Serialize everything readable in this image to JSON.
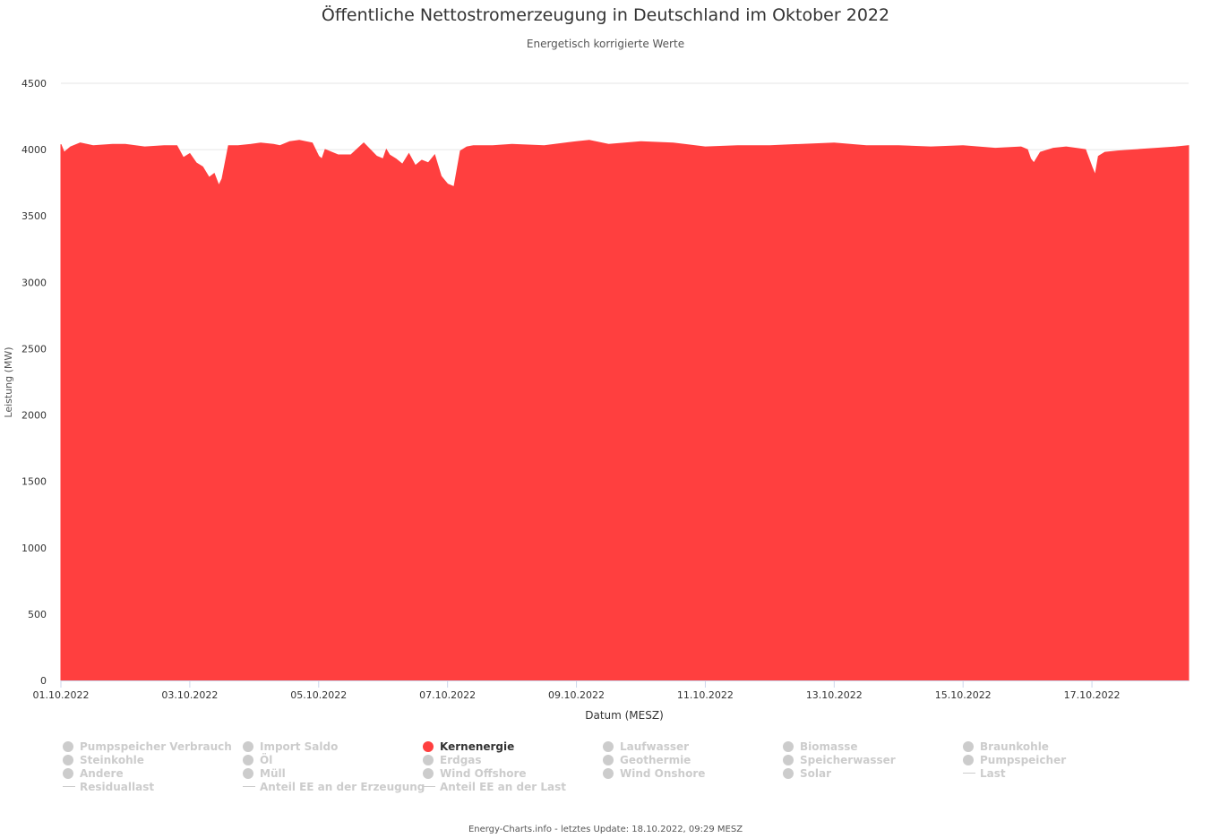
{
  "title": "Öffentliche Nettostromerzeugung in Deutschland im Oktober 2022",
  "subtitle": "Energetisch korrigierte Werte",
  "credits": "Energy-Charts.info - letztes Update: 18.10.2022, 09:29 MESZ",
  "colors": {
    "Kernenergie": "#ff3f3f",
    "inactive": "#cccccc",
    "grid": "#e6e6e6",
    "axis": "#ccd6eb"
  },
  "chart_data": {
    "type": "area",
    "xlabel": "Datum (MESZ)",
    "ylabel": "Leistung (MW)",
    "ylim": [
      0,
      4500
    ],
    "xlim": [
      "01.10.2022 00:00",
      "18.10.2022 00:00"
    ],
    "yticks": [
      0,
      500,
      1000,
      1500,
      2000,
      2500,
      3000,
      3500,
      4000,
      4500
    ],
    "xticks": [
      "01.10.2022",
      "03.10.2022",
      "05.10.2022",
      "07.10.2022",
      "09.10.2022",
      "11.10.2022",
      "13.10.2022",
      "15.10.2022",
      "17.10.2022"
    ],
    "grid": true,
    "series": [
      {
        "name": "Kernenergie",
        "x_days": [
          0,
          0.05,
          0.15,
          0.3,
          0.5,
          0.8,
          1.0,
          1.3,
          1.6,
          1.8,
          1.9,
          2.0,
          2.1,
          2.2,
          2.3,
          2.38,
          2.45,
          2.5,
          2.6,
          2.75,
          2.95,
          3.1,
          3.3,
          3.4,
          3.45,
          3.55,
          3.7,
          3.8,
          3.9,
          4.0,
          4.05,
          4.1,
          4.3,
          4.5,
          4.7,
          4.9,
          5.0,
          5.05,
          5.1,
          5.2,
          5.3,
          5.4,
          5.5,
          5.6,
          5.7,
          5.8,
          5.9,
          6.0,
          6.1,
          6.2,
          6.3,
          6.4,
          6.5,
          6.7,
          7.0,
          7.5,
          8.0,
          8.2,
          8.5,
          9.0,
          9.5,
          10.0,
          10.5,
          11.0,
          11.5,
          12.0,
          12.5,
          13.0,
          13.5,
          14.0,
          14.5,
          14.9,
          15.0,
          15.05,
          15.1,
          15.2,
          15.4,
          15.6,
          15.9,
          16.0,
          16.05,
          16.1,
          16.2,
          16.4,
          16.7,
          17.0,
          17.3,
          17.5
        ],
        "values": [
          4040,
          3980,
          4020,
          4050,
          4030,
          4040,
          4040,
          4020,
          4030,
          4030,
          3940,
          3970,
          3900,
          3870,
          3790,
          3820,
          3730,
          3780,
          4030,
          4030,
          4040,
          4050,
          4040,
          4030,
          4040,
          4060,
          4070,
          4060,
          4050,
          3950,
          3930,
          4000,
          3960,
          3960,
          4050,
          3950,
          3930,
          4000,
          3960,
          3930,
          3890,
          3970,
          3880,
          3920,
          3900,
          3960,
          3800,
          3740,
          3720,
          3990,
          4020,
          4030,
          4030,
          4030,
          4040,
          4030,
          4060,
          4070,
          4040,
          4060,
          4050,
          4020,
          4030,
          4030,
          4040,
          4050,
          4030,
          4030,
          4020,
          4030,
          4010,
          4020,
          4000,
          3930,
          3900,
          3980,
          4010,
          4020,
          4000,
          3870,
          3810,
          3950,
          3980,
          3990,
          4000,
          4010,
          4020,
          4030
        ]
      }
    ]
  },
  "legend": [
    {
      "label": "Pumpspeicher Verbrauch",
      "symbol": "circle",
      "active": false
    },
    {
      "label": "Import Saldo",
      "symbol": "circle",
      "active": false
    },
    {
      "label": "Kernenergie",
      "symbol": "circle",
      "active": true
    },
    {
      "label": "Laufwasser",
      "symbol": "circle",
      "active": false
    },
    {
      "label": "Biomasse",
      "symbol": "circle",
      "active": false
    },
    {
      "label": "Braunkohle",
      "symbol": "circle",
      "active": false
    },
    {
      "label": "Steinkohle",
      "symbol": "circle",
      "active": false
    },
    {
      "label": "Öl",
      "symbol": "circle",
      "active": false
    },
    {
      "label": "Erdgas",
      "symbol": "circle",
      "active": false
    },
    {
      "label": "Geothermie",
      "symbol": "circle",
      "active": false
    },
    {
      "label": "Speicherwasser",
      "symbol": "circle",
      "active": false
    },
    {
      "label": "Pumpspeicher",
      "symbol": "circle",
      "active": false
    },
    {
      "label": "Andere",
      "symbol": "circle",
      "active": false
    },
    {
      "label": "Müll",
      "symbol": "circle",
      "active": false
    },
    {
      "label": "Wind Offshore",
      "symbol": "circle",
      "active": false
    },
    {
      "label": "Wind Onshore",
      "symbol": "circle",
      "active": false
    },
    {
      "label": "Solar",
      "symbol": "circle",
      "active": false
    },
    {
      "label": "Last",
      "symbol": "line",
      "active": false
    },
    {
      "label": "Residuallast",
      "symbol": "line",
      "active": false
    },
    {
      "label": "Anteil EE an der Erzeugung",
      "symbol": "line",
      "active": false
    },
    {
      "label": "Anteil EE an der Last",
      "symbol": "line",
      "active": false
    }
  ]
}
